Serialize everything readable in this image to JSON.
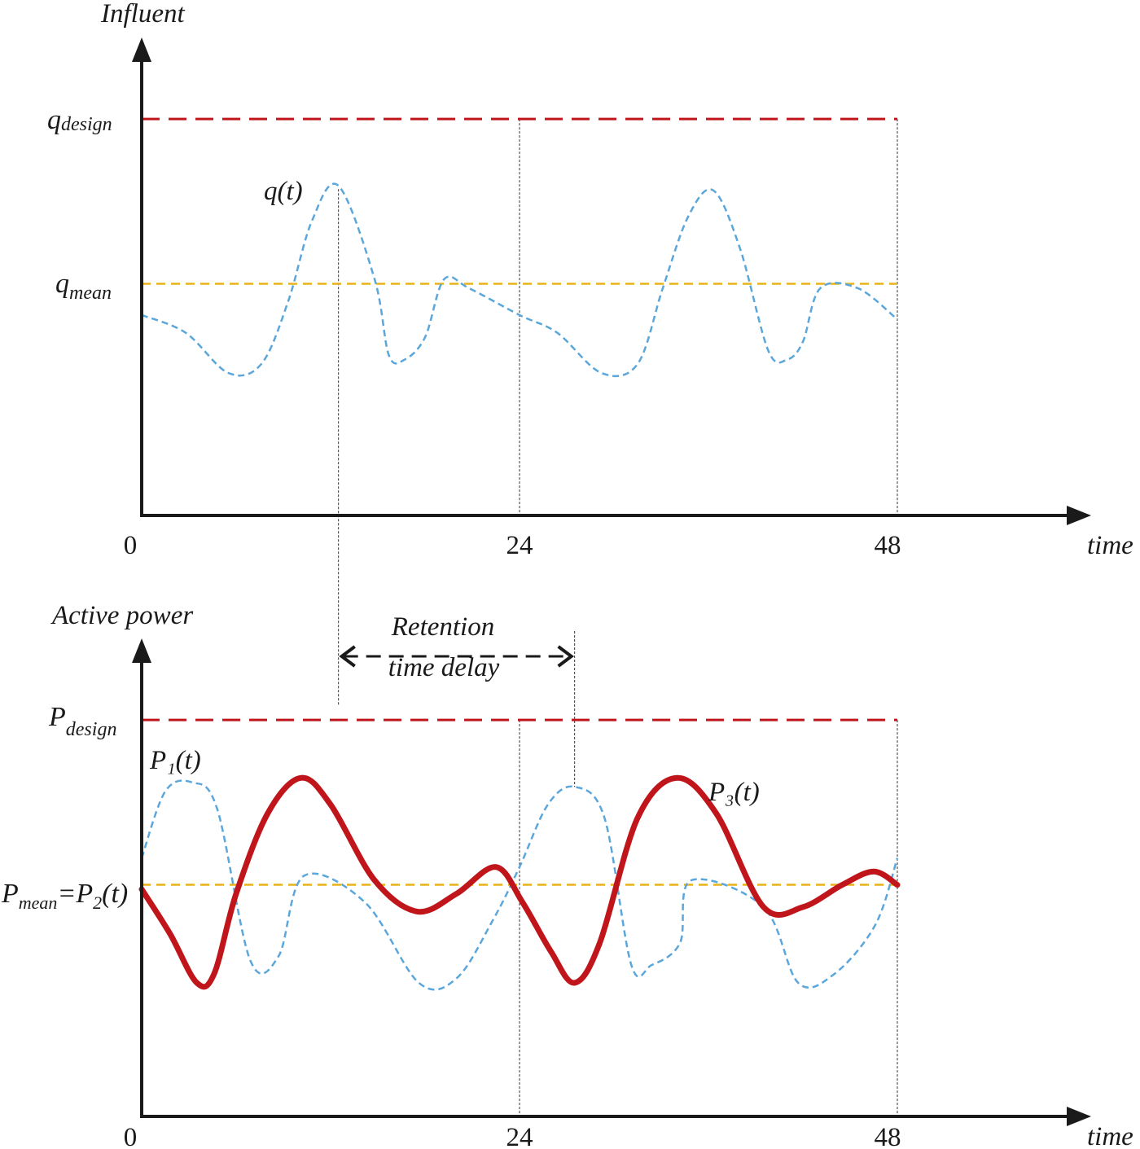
{
  "chart_data": [
    {
      "type": "line",
      "ylabel": "Influent",
      "xlabel": "time",
      "x_ticks": [
        "0",
        "24",
        "48"
      ],
      "xlim": [
        0,
        48
      ],
      "ylim": [
        0,
        10
      ],
      "levels": {
        "design": {
          "label_main": "q",
          "label_sub": "design",
          "value": 8.9,
          "color": "#c0161b"
        },
        "mean": {
          "label_main": "q",
          "label_sub": "mean",
          "value": 5.2,
          "color": "#e7b21c"
        }
      },
      "series": [
        {
          "name": "q(t)",
          "style": "dashed",
          "color": "#5ba6da",
          "x": [
            0,
            2.8,
            5.5,
            7.6,
            9.3,
            10.8,
            12.5,
            14.8,
            15.7,
            16.7,
            18.0,
            19.2,
            20.8,
            24.0,
            26.4,
            29.2,
            31.5,
            33.1,
            34.7,
            36.3,
            38.0,
            39.8,
            41.0,
            42.0,
            43.1,
            45.5,
            48.0
          ],
          "y": [
            4.5,
            4.1,
            3.2,
            3.4,
            4.8,
            6.6,
            7.4,
            5.3,
            3.6,
            3.5,
            4.0,
            5.3,
            5.1,
            4.5,
            4.1,
            3.2,
            3.4,
            5.1,
            6.7,
            7.3,
            6.0,
            3.7,
            3.5,
            3.9,
            5.1,
            5.1,
            4.4
          ]
        }
      ],
      "annotation_x": [
        12.5,
        24,
        48
      ]
    },
    {
      "type": "line",
      "ylabel": "Active power",
      "xlabel": "time",
      "x_ticks": [
        "0",
        "24",
        "48"
      ],
      "xlim": [
        0,
        48
      ],
      "ylim": [
        0,
        10
      ],
      "levels": {
        "design": {
          "label_main": "P",
          "label_sub": "design",
          "value": 8.9,
          "color": "#c0161b"
        },
        "mean": {
          "label_main": "P",
          "label_sub": "mean",
          "label_rest": "=P",
          "label_rest_sub": "2",
          "label_tail": "(t)",
          "value": 5.2,
          "color": "#e7b21c"
        }
      },
      "series": [
        {
          "name": "P₁(t)",
          "style": "dashed",
          "color": "#5ba6da",
          "x": [
            0,
            1.5,
            3.2,
            4.8,
            6.9,
            8.7,
            10.3,
            14.2,
            17.6,
            20.0,
            22.3,
            24.0,
            25.8,
            27.5,
            29.4,
            31.1,
            32.4,
            34.2,
            34.9,
            39.5,
            41.7,
            44.0,
            46.6,
            48.0
          ],
          "y": [
            5.8,
            7.3,
            7.5,
            6.9,
            3.5,
            3.6,
            5.4,
            4.8,
            3.0,
            3.1,
            4.4,
            5.6,
            7.0,
            7.4,
            6.7,
            3.4,
            3.4,
            3.9,
            5.3,
            4.7,
            3.0,
            3.2,
            4.3,
            5.8
          ]
        },
        {
          "name": "P₃(t)",
          "style": "solid",
          "color": "#c0161b",
          "x": [
            0,
            1.8,
            3.5,
            4.6,
            6.0,
            8.0,
            10.1,
            12.0,
            14.8,
            17.5,
            20.0,
            22.5,
            24.2,
            26.0,
            27.5,
            29.1,
            31.5,
            34.0,
            36.5,
            39.5,
            42.0,
            44.5,
            46.5,
            48.0
          ],
          "y": [
            5.1,
            4.1,
            3.0,
            3.2,
            5.0,
            6.8,
            7.6,
            7.0,
            5.3,
            4.6,
            5.0,
            5.6,
            4.8,
            3.7,
            3.0,
            3.9,
            6.7,
            7.6,
            6.8,
            4.7,
            4.7,
            5.2,
            5.5,
            5.2
          ]
        }
      ],
      "annotation_x": [
        24,
        48
      ],
      "retention": {
        "label_line1": "Retention",
        "label_line2": "time delay",
        "from_x": 12.5,
        "to_x": 27.5
      }
    }
  ]
}
